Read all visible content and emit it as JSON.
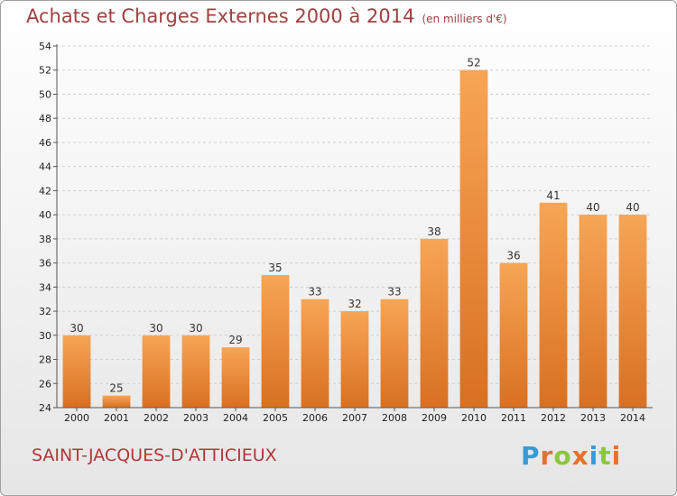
{
  "header": {
    "title": "Achats et Charges Externes 2000 à 2014",
    "subtitle": "(en milliers d'€)"
  },
  "footer": {
    "place": "SAINT-JACQUES-D'ATTICIEUX",
    "logo": "Proxiti",
    "logo_colors": [
      "#3a9ad9",
      "#e8712a",
      "#8dc63f",
      "#e8712a",
      "#3a9ad9",
      "#8dc63f",
      "#e8712a"
    ]
  },
  "colors": {
    "bar_light": "#f7a556",
    "bar_dark": "#d97021",
    "grid": "#cfcfcf",
    "axis": "#555555"
  },
  "chart_data": {
    "type": "bar",
    "categories": [
      "2000",
      "2001",
      "2002",
      "2003",
      "2004",
      "2005",
      "2006",
      "2007",
      "2008",
      "2009",
      "2010",
      "2011",
      "2012",
      "2013",
      "2014"
    ],
    "values": [
      30,
      25,
      30,
      30,
      29,
      35,
      33,
      32,
      33,
      38,
      52,
      36,
      41,
      40,
      40
    ],
    "title": "Achats et Charges Externes 2000 à 2014",
    "ylim": [
      24,
      54
    ],
    "yticks": [
      24,
      26,
      28,
      30,
      32,
      34,
      36,
      38,
      40,
      42,
      44,
      46,
      48,
      50,
      52,
      54
    ],
    "grid": true,
    "legend": "none"
  }
}
